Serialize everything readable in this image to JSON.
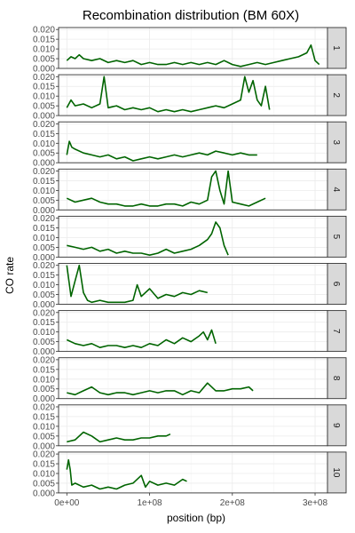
{
  "chart_data": {
    "type": "line",
    "title": "Recombination distribution (BM 60X)",
    "xlabel": "position (bp)",
    "ylabel": "CO rate",
    "xlim": [
      -10000000,
      315000000
    ],
    "ylim": [
      0,
      0.021
    ],
    "x_ticks": [
      0,
      100000000,
      200000000,
      300000000
    ],
    "x_tick_labels": [
      "0e+00",
      "1e+08",
      "2e+08",
      "3e+08"
    ],
    "y_ticks": [
      0,
      0.005,
      0.01,
      0.015,
      0.02
    ],
    "y_tick_labels": [
      "0.000",
      "0.005",
      "0.010",
      "0.015",
      "0.020"
    ],
    "grid": true,
    "line_color": "#006400",
    "facet_labels": [
      "1",
      "2",
      "3",
      "4",
      "5",
      "6",
      "7",
      "8",
      "9",
      "10"
    ],
    "series": [
      {
        "facet": "1",
        "points": [
          [
            0,
            0.004
          ],
          [
            5000000.0,
            0.006
          ],
          [
            10000000.0,
            0.005
          ],
          [
            15000000.0,
            0.007
          ],
          [
            20000000.0,
            0.005
          ],
          [
            30000000.0,
            0.004
          ],
          [
            40000000.0,
            0.005
          ],
          [
            50000000.0,
            0.003
          ],
          [
            60000000.0,
            0.004
          ],
          [
            70000000.0,
            0.003
          ],
          [
            80000000.0,
            0.004
          ],
          [
            90000000.0,
            0.002
          ],
          [
            100000000.0,
            0.003
          ],
          [
            110000000.0,
            0.002
          ],
          [
            120000000.0,
            0.002
          ],
          [
            130000000.0,
            0.003
          ],
          [
            140000000.0,
            0.002
          ],
          [
            150000000.0,
            0.003
          ],
          [
            160000000.0,
            0.002
          ],
          [
            170000000.0,
            0.003
          ],
          [
            180000000.0,
            0.002
          ],
          [
            190000000.0,
            0.004
          ],
          [
            200000000.0,
            0.002
          ],
          [
            210000000.0,
            0.001
          ],
          [
            220000000.0,
            0.002
          ],
          [
            230000000.0,
            0.003
          ],
          [
            240000000.0,
            0.002
          ],
          [
            250000000.0,
            0.003
          ],
          [
            260000000.0,
            0.004
          ],
          [
            270000000.0,
            0.005
          ],
          [
            280000000.0,
            0.006
          ],
          [
            290000000.0,
            0.008
          ],
          [
            295000000.0,
            0.012
          ],
          [
            300000000.0,
            0.004
          ],
          [
            305000000.0,
            0.002
          ]
        ]
      },
      {
        "facet": "2",
        "points": [
          [
            0,
            0.004
          ],
          [
            5000000.0,
            0.008
          ],
          [
            10000000.0,
            0.005
          ],
          [
            20000000.0,
            0.006
          ],
          [
            30000000.0,
            0.004
          ],
          [
            40000000.0,
            0.006
          ],
          [
            45000000.0,
            0.02
          ],
          [
            50000000.0,
            0.004
          ],
          [
            60000000.0,
            0.005
          ],
          [
            70000000.0,
            0.003
          ],
          [
            80000000.0,
            0.004
          ],
          [
            90000000.0,
            0.003
          ],
          [
            100000000.0,
            0.004
          ],
          [
            110000000.0,
            0.002
          ],
          [
            120000000.0,
            0.003
          ],
          [
            130000000.0,
            0.002
          ],
          [
            140000000.0,
            0.003
          ],
          [
            150000000.0,
            0.002
          ],
          [
            160000000.0,
            0.003
          ],
          [
            170000000.0,
            0.004
          ],
          [
            180000000.0,
            0.005
          ],
          [
            190000000.0,
            0.004
          ],
          [
            200000000.0,
            0.006
          ],
          [
            210000000.0,
            0.008
          ],
          [
            215000000.0,
            0.02
          ],
          [
            220000000.0,
            0.012
          ],
          [
            225000000.0,
            0.018
          ],
          [
            230000000.0,
            0.008
          ],
          [
            235000000.0,
            0.005
          ],
          [
            240000000.0,
            0.015
          ],
          [
            245000000.0,
            0.003
          ]
        ]
      },
      {
        "facet": "3",
        "points": [
          [
            0,
            0.004
          ],
          [
            3000000.0,
            0.011
          ],
          [
            6000000.0,
            0.008
          ],
          [
            10000000.0,
            0.007
          ],
          [
            20000000.0,
            0.005
          ],
          [
            30000000.0,
            0.004
          ],
          [
            40000000.0,
            0.003
          ],
          [
            50000000.0,
            0.004
          ],
          [
            60000000.0,
            0.002
          ],
          [
            70000000.0,
            0.003
          ],
          [
            80000000.0,
            0.001
          ],
          [
            90000000.0,
            0.002
          ],
          [
            100000000.0,
            0.003
          ],
          [
            110000000.0,
            0.002
          ],
          [
            120000000.0,
            0.003
          ],
          [
            130000000.0,
            0.004
          ],
          [
            140000000.0,
            0.003
          ],
          [
            150000000.0,
            0.004
          ],
          [
            160000000.0,
            0.005
          ],
          [
            170000000.0,
            0.004
          ],
          [
            180000000.0,
            0.006
          ],
          [
            190000000.0,
            0.005
          ],
          [
            200000000.0,
            0.004
          ],
          [
            210000000.0,
            0.005
          ],
          [
            220000000.0,
            0.004
          ],
          [
            230000000.0,
            0.004
          ]
        ]
      },
      {
        "facet": "4",
        "points": [
          [
            0,
            0.006
          ],
          [
            10000000.0,
            0.004
          ],
          [
            20000000.0,
            0.005
          ],
          [
            30000000.0,
            0.006
          ],
          [
            40000000.0,
            0.004
          ],
          [
            50000000.0,
            0.003
          ],
          [
            60000000.0,
            0.003
          ],
          [
            70000000.0,
            0.002
          ],
          [
            80000000.0,
            0.002
          ],
          [
            90000000.0,
            0.003
          ],
          [
            100000000.0,
            0.002
          ],
          [
            110000000.0,
            0.002
          ],
          [
            120000000.0,
            0.003
          ],
          [
            130000000.0,
            0.003
          ],
          [
            140000000.0,
            0.002
          ],
          [
            150000000.0,
            0.004
          ],
          [
            160000000.0,
            0.003
          ],
          [
            170000000.0,
            0.005
          ],
          [
            175000000.0,
            0.017
          ],
          [
            180000000.0,
            0.02
          ],
          [
            185000000.0,
            0.01
          ],
          [
            190000000.0,
            0.003
          ],
          [
            195000000.0,
            0.02
          ],
          [
            200000000.0,
            0.004
          ],
          [
            210000000.0,
            0.003
          ],
          [
            220000000.0,
            0.002
          ],
          [
            230000000.0,
            0.004
          ],
          [
            240000000.0,
            0.006
          ]
        ]
      },
      {
        "facet": "5",
        "points": [
          [
            0,
            0.006
          ],
          [
            10000000.0,
            0.005
          ],
          [
            20000000.0,
            0.004
          ],
          [
            30000000.0,
            0.005
          ],
          [
            40000000.0,
            0.003
          ],
          [
            50000000.0,
            0.004
          ],
          [
            60000000.0,
            0.002
          ],
          [
            70000000.0,
            0.003
          ],
          [
            80000000.0,
            0.002
          ],
          [
            90000000.0,
            0.002
          ],
          [
            100000000.0,
            0.001
          ],
          [
            110000000.0,
            0.002
          ],
          [
            120000000.0,
            0.004
          ],
          [
            130000000.0,
            0.002
          ],
          [
            140000000.0,
            0.003
          ],
          [
            150000000.0,
            0.004
          ],
          [
            160000000.0,
            0.006
          ],
          [
            170000000.0,
            0.009
          ],
          [
            175000000.0,
            0.012
          ],
          [
            180000000.0,
            0.018
          ],
          [
            185000000.0,
            0.015
          ],
          [
            190000000.0,
            0.006
          ],
          [
            195000000.0,
            0.001
          ]
        ]
      },
      {
        "facet": "6",
        "points": [
          [
            0,
            0.02
          ],
          [
            5000000.0,
            0.004
          ],
          [
            10000000.0,
            0.012
          ],
          [
            15000000.0,
            0.02
          ],
          [
            20000000.0,
            0.006
          ],
          [
            25000000.0,
            0.002
          ],
          [
            30000000.0,
            0.001
          ],
          [
            40000000.0,
            0.002
          ],
          [
            50000000.0,
            0.001
          ],
          [
            60000000.0,
            0.001
          ],
          [
            70000000.0,
            0.001
          ],
          [
            80000000.0,
            0.002
          ],
          [
            85000000.0,
            0.01
          ],
          [
            90000000.0,
            0.004
          ],
          [
            100000000.0,
            0.008
          ],
          [
            110000000.0,
            0.003
          ],
          [
            120000000.0,
            0.005
          ],
          [
            130000000.0,
            0.004
          ],
          [
            140000000.0,
            0.006
          ],
          [
            150000000.0,
            0.005
          ],
          [
            160000000.0,
            0.007
          ],
          [
            170000000.0,
            0.006
          ]
        ]
      },
      {
        "facet": "7",
        "points": [
          [
            0,
            0.006
          ],
          [
            10000000.0,
            0.004
          ],
          [
            20000000.0,
            0.003
          ],
          [
            30000000.0,
            0.004
          ],
          [
            40000000.0,
            0.002
          ],
          [
            50000000.0,
            0.003
          ],
          [
            60000000.0,
            0.003
          ],
          [
            70000000.0,
            0.002
          ],
          [
            80000000.0,
            0.003
          ],
          [
            90000000.0,
            0.002
          ],
          [
            100000000.0,
            0.004
          ],
          [
            110000000.0,
            0.003
          ],
          [
            120000000.0,
            0.006
          ],
          [
            130000000.0,
            0.004
          ],
          [
            140000000.0,
            0.007
          ],
          [
            150000000.0,
            0.005
          ],
          [
            160000000.0,
            0.008
          ],
          [
            165000000.0,
            0.01
          ],
          [
            170000000.0,
            0.006
          ],
          [
            175000000.0,
            0.011
          ],
          [
            180000000.0,
            0.004
          ]
        ]
      },
      {
        "facet": "8",
        "points": [
          [
            0,
            0.003
          ],
          [
            10000000.0,
            0.002
          ],
          [
            20000000.0,
            0.004
          ],
          [
            30000000.0,
            0.006
          ],
          [
            40000000.0,
            0.003
          ],
          [
            50000000.0,
            0.002
          ],
          [
            60000000.0,
            0.003
          ],
          [
            70000000.0,
            0.003
          ],
          [
            80000000.0,
            0.002
          ],
          [
            90000000.0,
            0.003
          ],
          [
            100000000.0,
            0.004
          ],
          [
            110000000.0,
            0.003
          ],
          [
            120000000.0,
            0.004
          ],
          [
            130000000.0,
            0.004
          ],
          [
            140000000.0,
            0.002
          ],
          [
            150000000.0,
            0.004
          ],
          [
            160000000.0,
            0.003
          ],
          [
            170000000.0,
            0.008
          ],
          [
            180000000.0,
            0.004
          ],
          [
            190000000.0,
            0.004
          ],
          [
            200000000.0,
            0.005
          ],
          [
            210000000.0,
            0.005
          ],
          [
            220000000.0,
            0.006
          ],
          [
            225000000.0,
            0.004
          ]
        ]
      },
      {
        "facet": "9",
        "points": [
          [
            0,
            0.002
          ],
          [
            10000000.0,
            0.003
          ],
          [
            20000000.0,
            0.007
          ],
          [
            30000000.0,
            0.005
          ],
          [
            40000000.0,
            0.002
          ],
          [
            50000000.0,
            0.003
          ],
          [
            60000000.0,
            0.004
          ],
          [
            70000000.0,
            0.003
          ],
          [
            80000000.0,
            0.003
          ],
          [
            90000000.0,
            0.004
          ],
          [
            100000000.0,
            0.004
          ],
          [
            110000000.0,
            0.005
          ],
          [
            120000000.0,
            0.005
          ],
          [
            125000000.0,
            0.006
          ]
        ]
      },
      {
        "facet": "10",
        "points": [
          [
            0,
            0.012
          ],
          [
            2000000.0,
            0.017
          ],
          [
            4000000.0,
            0.012
          ],
          [
            6000000.0,
            0.004
          ],
          [
            10000000.0,
            0.005
          ],
          [
            20000000.0,
            0.003
          ],
          [
            30000000.0,
            0.004
          ],
          [
            40000000.0,
            0.002
          ],
          [
            50000000.0,
            0.003
          ],
          [
            60000000.0,
            0.002
          ],
          [
            70000000.0,
            0.004
          ],
          [
            80000000.0,
            0.005
          ],
          [
            90000000.0,
            0.009
          ],
          [
            95000000.0,
            0.003
          ],
          [
            100000000.0,
            0.006
          ],
          [
            110000000.0,
            0.004
          ],
          [
            120000000.0,
            0.005
          ],
          [
            130000000.0,
            0.004
          ],
          [
            140000000.0,
            0.007
          ],
          [
            145000000.0,
            0.006
          ]
        ]
      }
    ]
  }
}
